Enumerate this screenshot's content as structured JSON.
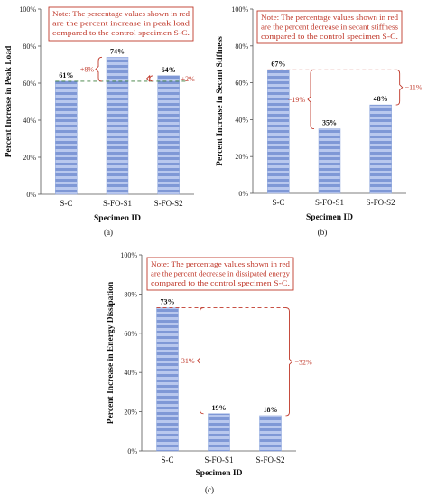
{
  "chart_data": [
    {
      "type": "bar",
      "panel_label": "(a)",
      "xlabel": "Specimen ID",
      "ylabel": "Percent Increase in Peak Load",
      "ylim": [
        0,
        100
      ],
      "yticks": [
        "0%",
        "20%",
        "40%",
        "60%",
        "80%",
        "100%"
      ],
      "categories": [
        "S-C",
        "S-FO-S1",
        "S-FO-S2"
      ],
      "values": [
        61,
        74,
        64
      ],
      "value_labels": [
        "61%",
        "74%",
        "64%"
      ],
      "diffs": [
        {
          "from": 0,
          "to": 1,
          "label": "+8%"
        },
        {
          "from": 0,
          "to": 2,
          "label": "+2%"
        }
      ],
      "note": [
        "Note: The percentage values shown in red",
        "are the percent increase in peak load",
        "compared to the control specimen S-C."
      ],
      "grid": false,
      "bar_color": "#8aa3dc"
    },
    {
      "type": "bar",
      "panel_label": "(b)",
      "xlabel": "Specimen ID",
      "ylabel": "Percent Increase in Secant Stiffness",
      "ylim": [
        0,
        100
      ],
      "yticks": [
        "0%",
        "20%",
        "40%",
        "60%",
        "80%",
        "100%"
      ],
      "categories": [
        "S-C",
        "S-FO-S1",
        "S-FO-S2"
      ],
      "values": [
        67,
        35,
        48
      ],
      "value_labels": [
        "67%",
        "35%",
        "48%"
      ],
      "diffs": [
        {
          "from": 0,
          "to": 1,
          "label": "−19%"
        },
        {
          "from": 0,
          "to": 2,
          "label": "−11%"
        }
      ],
      "note": [
        "Note: The percentage values shown in red",
        "are the percent decrease in secant stiffness",
        "compared to the control specimen S-C."
      ],
      "grid": false,
      "bar_color": "#8aa3dc"
    },
    {
      "type": "bar",
      "panel_label": "(c)",
      "xlabel": "Specimen ID",
      "ylabel": "Percent Increase in Energy Dissipation",
      "ylim": [
        0,
        100
      ],
      "yticks": [
        "0%",
        "20%",
        "40%",
        "60%",
        "80%",
        "100%"
      ],
      "categories": [
        "S-C",
        "S-FO-S1",
        "S-FO-S2"
      ],
      "values": [
        73,
        19,
        18
      ],
      "value_labels": [
        "73%",
        "19%",
        "18%"
      ],
      "diffs": [
        {
          "from": 0,
          "to": 1,
          "label": "−31%"
        },
        {
          "from": 0,
          "to": 2,
          "label": "−32%"
        }
      ],
      "note": [
        "Note: The percentage values shown in red",
        "are the percent decrease in dissipated energy",
        "compared to the control specimen S-C."
      ],
      "grid": false,
      "bar_color": "#8aa3dc"
    }
  ]
}
